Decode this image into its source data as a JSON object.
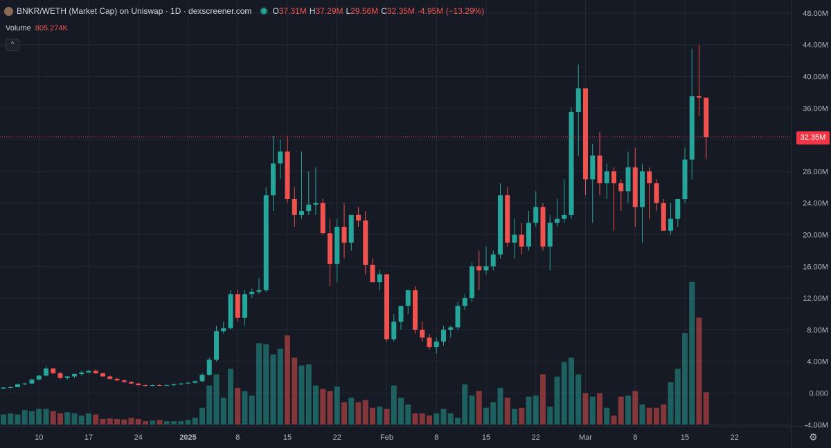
{
  "legend": {
    "title": "BNKR/WETH (Market Cap) on Uniswap · 1D · dexscreener.com",
    "o_label": "O",
    "o_value": "37.31M",
    "h_label": "H",
    "h_value": "37.29M",
    "l_label": "L",
    "l_value": "29.56M",
    "c_label": "C",
    "c_value": "32.35M",
    "change": "-4.95M (−13.29%)"
  },
  "volume": {
    "label": "Volume",
    "value": "805.274K"
  },
  "collapse_icon": "chevron-up-icon",
  "settings_icon": "gear-icon",
  "colors": {
    "up": "#26a69a",
    "down": "#ef5350",
    "background": "#161a25",
    "last_price": "#f23645"
  },
  "chart_data": {
    "type": "candlestick",
    "last_price_label": "32.35M",
    "last_price": 32.35,
    "y_unit": "M",
    "y_ticks": [
      -4,
      0,
      4,
      8,
      12,
      16,
      20,
      24,
      28,
      32,
      36,
      40,
      44,
      48
    ],
    "y_tick_labels": [
      "-4.00M",
      "0.000",
      "4.00M",
      "8.00M",
      "12.00M",
      "16.00M",
      "20.00M",
      "24.00M",
      "28.00M",
      "36.00M",
      "40.00M",
      "44.00M",
      "48.00M"
    ],
    "y_tick_label_values": [
      -4,
      0,
      4,
      8,
      12,
      16,
      20,
      24,
      28,
      36,
      40,
      44,
      48
    ],
    "ylim": [
      -4,
      48
    ],
    "x_tick_labels": [
      "10",
      "17",
      "24",
      "2025",
      "8",
      "15",
      "22",
      "Feb",
      "8",
      "15",
      "22",
      "Mar",
      "8",
      "15",
      "22"
    ],
    "x_tick_index": [
      9,
      16,
      23,
      30,
      37,
      44,
      51,
      58,
      65,
      72,
      79,
      86,
      93,
      100,
      107
    ],
    "first_day_index": 4,
    "grid": true,
    "candles": [
      [
        0.3,
        0.4,
        0.25,
        0.35
      ],
      [
        0.35,
        0.45,
        0.3,
        0.45
      ],
      [
        0.45,
        0.55,
        0.35,
        0.5
      ],
      [
        0.5,
        0.6,
        0.45,
        0.55
      ],
      [
        0.55,
        0.75,
        0.5,
        0.7
      ],
      [
        0.7,
        0.85,
        0.6,
        0.75
      ],
      [
        0.75,
        1.2,
        0.7,
        1.1
      ],
      [
        1.1,
        1.3,
        1.0,
        1.2
      ],
      [
        1.2,
        1.8,
        1.1,
        1.7
      ],
      [
        1.7,
        2.3,
        1.6,
        2.2
      ],
      [
        2.2,
        3.4,
        2.1,
        3.1
      ],
      [
        3.1,
        3.2,
        2.4,
        2.5
      ],
      [
        2.5,
        2.7,
        1.8,
        1.9
      ],
      [
        1.9,
        2.2,
        1.7,
        2.1
      ],
      [
        2.1,
        2.5,
        1.9,
        2.4
      ],
      [
        2.4,
        2.8,
        2.2,
        2.6
      ],
      [
        2.6,
        2.9,
        2.5,
        2.8
      ],
      [
        2.8,
        3.0,
        2.4,
        2.5
      ],
      [
        2.5,
        2.6,
        2.0,
        2.1
      ],
      [
        2.1,
        2.2,
        1.7,
        1.8
      ],
      [
        1.8,
        1.9,
        1.5,
        1.6
      ],
      [
        1.6,
        1.7,
        1.3,
        1.4
      ],
      [
        1.4,
        1.5,
        1.1,
        1.2
      ],
      [
        1.2,
        1.3,
        0.9,
        1.0
      ],
      [
        1.0,
        1.1,
        0.8,
        0.9
      ],
      [
        0.9,
        1.1,
        0.85,
        1.0
      ],
      [
        1.0,
        1.1,
        0.9,
        0.95
      ],
      [
        0.95,
        1.05,
        0.9,
        1.0
      ],
      [
        1.0,
        1.2,
        0.9,
        1.1
      ],
      [
        1.1,
        1.3,
        1.0,
        1.2
      ],
      [
        1.2,
        1.4,
        1.1,
        1.3
      ],
      [
        1.3,
        1.6,
        1.2,
        1.5
      ],
      [
        1.5,
        2.5,
        1.4,
        2.3
      ],
      [
        2.3,
        4.5,
        2.2,
        4.2
      ],
      [
        4.2,
        8.5,
        4.0,
        7.8
      ],
      [
        7.8,
        9.0,
        7.5,
        8.2
      ],
      [
        8.2,
        13.0,
        8.0,
        12.5
      ],
      [
        12.5,
        13.0,
        9.0,
        9.5
      ],
      [
        9.5,
        13.0,
        8.5,
        12.5
      ],
      [
        12.5,
        13.2,
        12.0,
        12.8
      ],
      [
        12.8,
        14.5,
        12.5,
        13.0
      ],
      [
        13.0,
        26.0,
        12.8,
        25.0
      ],
      [
        25.0,
        32.5,
        23.0,
        29.0
      ],
      [
        29.0,
        32.0,
        27.0,
        30.5
      ],
      [
        30.5,
        32.5,
        24.0,
        24.5
      ],
      [
        24.5,
        26.0,
        21.0,
        22.5
      ],
      [
        22.5,
        30.5,
        22.0,
        23.0
      ],
      [
        23.0,
        28.0,
        22.5,
        23.8
      ],
      [
        23.8,
        28.5,
        22.5,
        24.0
      ],
      [
        24.0,
        24.5,
        20.0,
        20.2
      ],
      [
        20.2,
        22.0,
        13.5,
        16.3
      ],
      [
        16.3,
        22.0,
        14.0,
        21.0
      ],
      [
        21.0,
        24.0,
        17.0,
        19.0
      ],
      [
        19.0,
        22.5,
        18.0,
        22.5
      ],
      [
        22.5,
        23.5,
        21.0,
        21.8
      ],
      [
        21.8,
        23.0,
        15.0,
        16.2
      ],
      [
        16.2,
        17.0,
        14.0,
        14.0
      ],
      [
        14.0,
        15.5,
        13.0,
        15.0
      ],
      [
        15.0,
        15.0,
        6.5,
        6.8
      ],
      [
        6.8,
        10.0,
        6.5,
        9.0
      ],
      [
        9.0,
        11.0,
        8.0,
        11.0
      ],
      [
        11.0,
        13.0,
        10.0,
        13.0
      ],
      [
        13.0,
        13.5,
        7.5,
        8.0
      ],
      [
        8.0,
        9.0,
        6.5,
        7.0
      ],
      [
        7.0,
        7.5,
        5.5,
        5.8
      ],
      [
        5.8,
        7.0,
        5.0,
        6.5
      ],
      [
        6.5,
        8.5,
        6.0,
        8.0
      ],
      [
        8.0,
        8.5,
        7.0,
        8.3
      ],
      [
        8.3,
        11.5,
        8.0,
        11.0
      ],
      [
        11.0,
        12.5,
        10.5,
        12.0
      ],
      [
        12.0,
        16.5,
        11.5,
        16.0
      ],
      [
        16.0,
        18.0,
        13.0,
        15.5
      ],
      [
        15.5,
        18.5,
        15.0,
        16.0
      ],
      [
        16.0,
        18.0,
        15.5,
        17.5
      ],
      [
        17.5,
        26.5,
        17.0,
        25.0
      ],
      [
        25.0,
        26.0,
        18.5,
        19.0
      ],
      [
        19.0,
        22.0,
        17.0,
        20.0
      ],
      [
        20.0,
        21.5,
        17.5,
        18.5
      ],
      [
        18.5,
        23.0,
        18.0,
        21.5
      ],
      [
        21.5,
        25.5,
        21.0,
        23.5
      ],
      [
        23.5,
        24.0,
        18.0,
        18.5
      ],
      [
        18.5,
        22.5,
        15.5,
        21.5
      ],
      [
        21.5,
        24.5,
        21.0,
        22.0
      ],
      [
        22.0,
        27.0,
        21.5,
        22.5
      ],
      [
        22.5,
        36.0,
        22.0,
        35.5
      ],
      [
        35.5,
        41.5,
        30.0,
        38.5
      ],
      [
        38.5,
        38.5,
        25.0,
        27.0
      ],
      [
        27.0,
        31.5,
        21.5,
        30.0
      ],
      [
        30.0,
        33.0,
        25.0,
        26.5
      ],
      [
        26.5,
        29.0,
        24.5,
        28.0
      ],
      [
        28.0,
        28.5,
        20.5,
        26.5
      ],
      [
        26.5,
        27.0,
        23.0,
        25.5
      ],
      [
        25.5,
        30.5,
        24.0,
        28.5
      ],
      [
        28.5,
        31.0,
        21.0,
        23.5
      ],
      [
        23.5,
        29.0,
        19.0,
        28.0
      ],
      [
        28.0,
        28.5,
        22.0,
        26.5
      ],
      [
        26.5,
        27.0,
        23.0,
        24.0
      ],
      [
        24.0,
        24.5,
        20.5,
        20.5
      ],
      [
        20.5,
        24.0,
        20.0,
        22.0
      ],
      [
        22.0,
        24.5,
        21.0,
        24.5
      ],
      [
        24.5,
        31.0,
        24.0,
        29.5
      ],
      [
        29.5,
        43.5,
        27.0,
        37.5
      ],
      [
        37.5,
        44.0,
        35.0,
        37.31
      ],
      [
        37.31,
        37.29,
        29.56,
        32.35
      ]
    ],
    "volume_scale_max": 9.5,
    "volume": [
      0.8,
      0.9,
      0.6,
      0.5,
      0.9,
      1.0,
      0.9,
      1.3,
      1.2,
      1.4,
      1.4,
      1.2,
      1.0,
      1.1,
      1.0,
      0.8,
      1.0,
      0.9,
      0.5,
      0.55,
      0.5,
      0.45,
      0.6,
      0.5,
      0.3,
      0.35,
      0.4,
      0.3,
      0.3,
      0.3,
      0.4,
      0.6,
      1.5,
      3.5,
      4.5,
      2.4,
      5.0,
      3.3,
      3.0,
      2.6,
      7.3,
      7.2,
      6.3,
      6.8,
      8.0,
      6.0,
      5.3,
      5.4,
      3.5,
      3.2,
      3.0,
      3.4,
      2.0,
      2.4,
      2.0,
      2.2,
      1.5,
      1.6,
      1.4,
      3.5,
      2.4,
      1.8,
      1.0,
      1.0,
      0.8,
      1.0,
      1.4,
      1.0,
      0.6,
      3.6,
      2.6,
      3.0,
      1.5,
      2.0,
      3.3,
      2.4,
      1.4,
      1.5,
      2.5,
      2.6,
      4.5,
      1.6,
      4.3,
      5.6,
      6.0,
      4.5,
      2.8,
      2.5,
      2.8,
      1.5,
      0.8,
      2.5,
      2.6,
      3.0,
      1.8,
      1.5,
      1.5,
      1.8,
      3.8,
      5.0,
      8.2,
      12.8,
      9.6,
      2.9
    ]
  }
}
